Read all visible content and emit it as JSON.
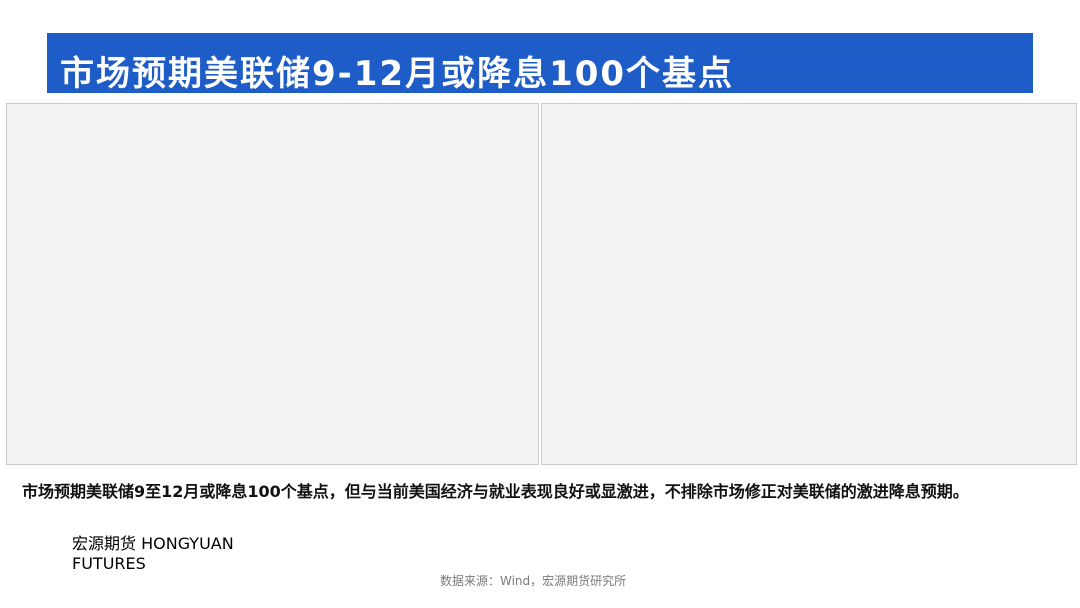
{
  "slide": {
    "title": "市场预期美联储9-12月或降息100个基点",
    "body": "市场预期美联储9至12月或降息100个基点，但与当前美国经济与就业表现良好或显激进，不排除市场修正对美联储的激进降息预期。",
    "source": "数据来源：Wind，宏源期货研究所"
  },
  "logo": {
    "cn": "宏源期货",
    "en": "HONGYUAN FUTURES"
  }
}
